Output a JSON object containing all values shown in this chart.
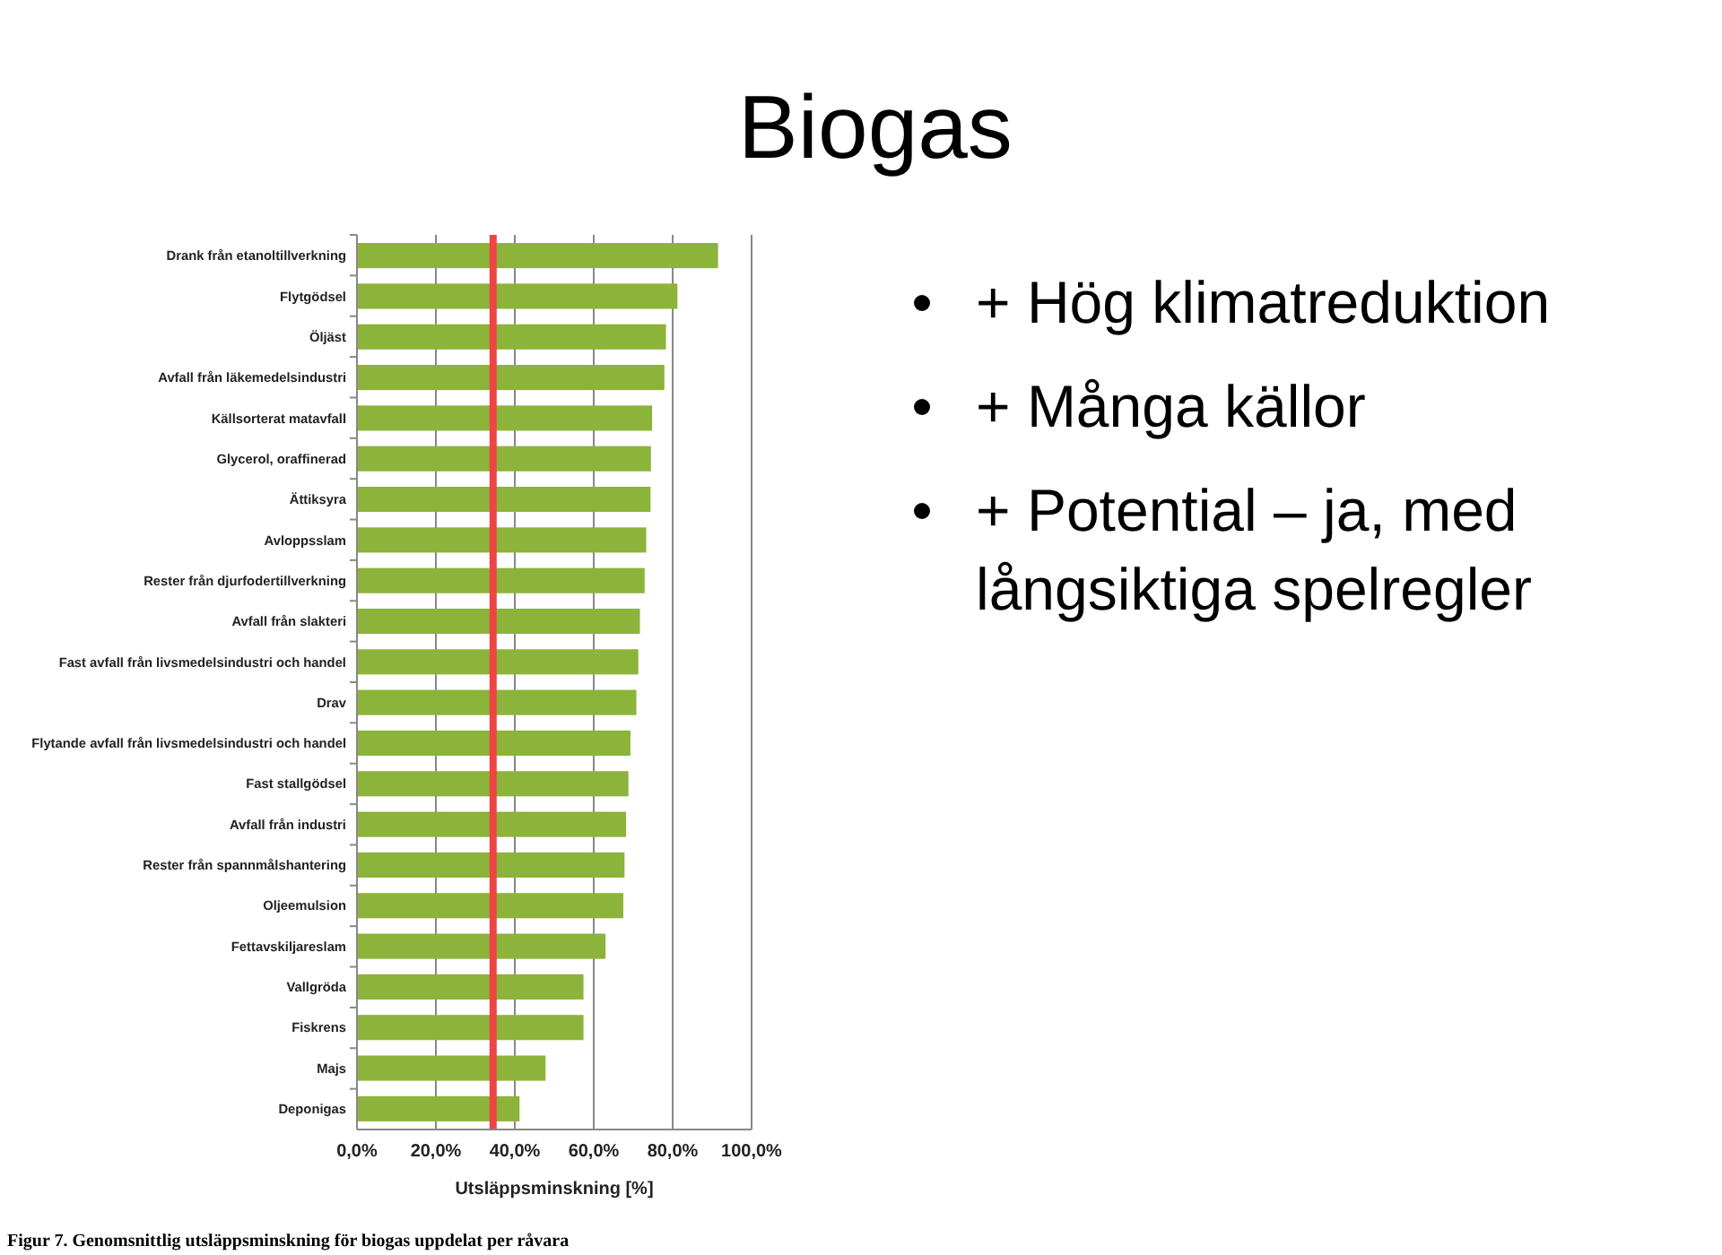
{
  "chart_data": {
    "type": "bar",
    "orientation": "horizontal",
    "title": "Biogas",
    "categories": [
      "Drank från etanoltillverkning",
      "Flytgödsel",
      "Öljäst",
      "Avfall från läkemedelsindustri",
      "Källsorterat matavfall",
      "Glycerol, oraffinerad",
      "Ättiksyra",
      "Avloppsslam",
      "Rester från djurfodertillverkning",
      "Avfall från slakteri",
      "Fast avfall från livsmedelsindustri och handel",
      "Drav",
      "Flytande avfall från livsmedelsindustri och handel",
      "Fast stallgödsel",
      "Avfall från industri",
      "Rester från spannmålshantering",
      "Oljeemulsion",
      "Fettavskiljareslam",
      "Vallgröda",
      "Fiskrens",
      "Majs",
      "Deponigas"
    ],
    "values": [
      91.5,
      81.2,
      78.3,
      77.9,
      74.8,
      74.5,
      74.4,
      73.3,
      72.9,
      71.7,
      71.3,
      70.8,
      69.3,
      68.8,
      68.2,
      67.8,
      67.5,
      63.0,
      57.4,
      57.4,
      47.8,
      41.2
    ],
    "color": "#8cb33a",
    "xlabel": "Utsläppsminskning [%]",
    "xlim": [
      0,
      100
    ],
    "xticks": [
      {
        "value": 0,
        "label": "0,0%"
      },
      {
        "value": 20,
        "label": "20,0%"
      },
      {
        "value": 40,
        "label": "40,0%"
      },
      {
        "value": 60,
        "label": "60,0%"
      },
      {
        "value": 80,
        "label": "80,0%"
      },
      {
        "value": 100,
        "label": "100,0%"
      }
    ],
    "grid": "x",
    "ref_lines": [
      {
        "axis": "x",
        "value": 34.5,
        "color": "#ee4444"
      }
    ],
    "annotations": [
      "+ Hög klimatreduktion",
      "+ Många källor",
      "+ Potential – ja, med långsiktiga spelregler",
      "Figur 7. Genomsnittlig utsläppsminskning för biogas uppdelat per råvara"
    ]
  }
}
